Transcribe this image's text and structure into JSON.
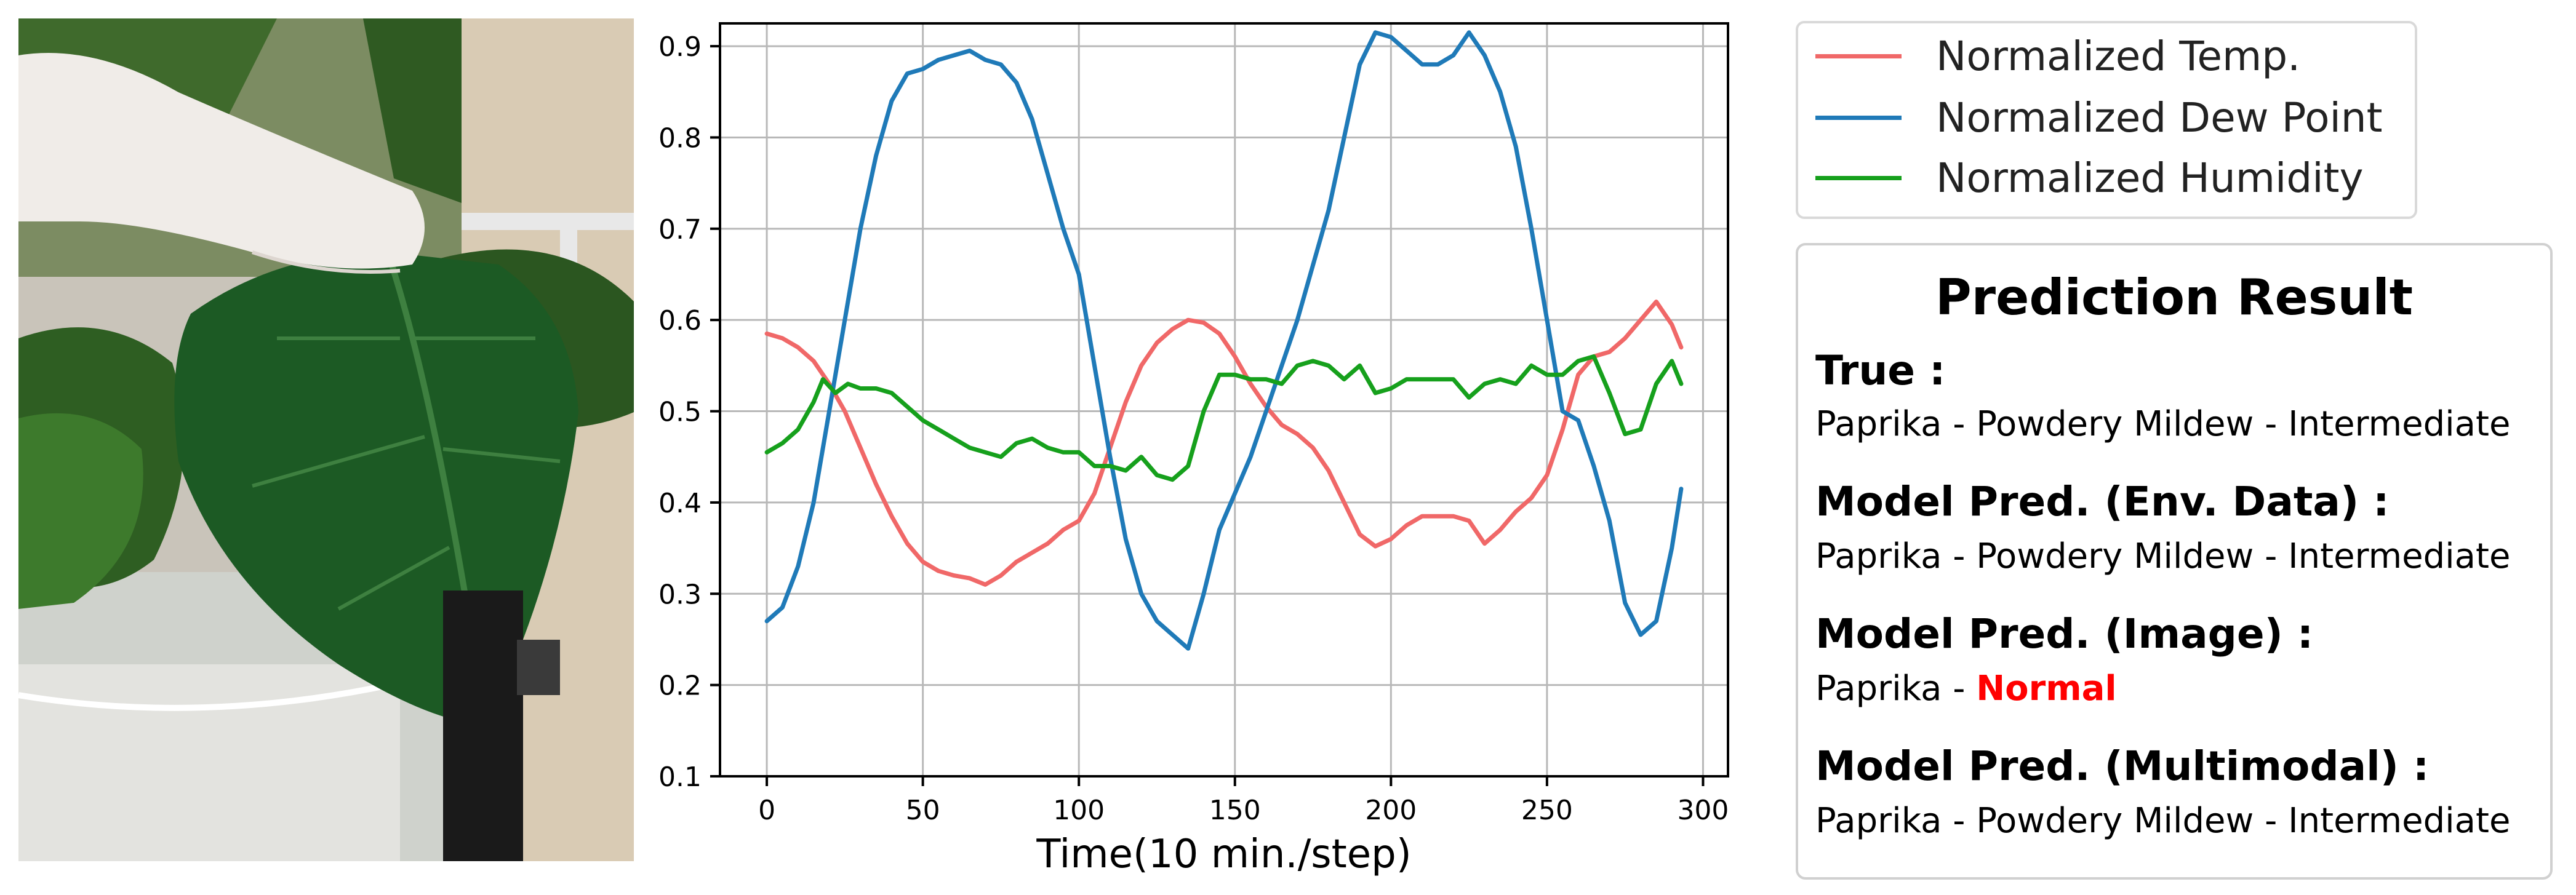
{
  "chart_data": {
    "type": "line",
    "xlabel": "Time(10 min./step)",
    "ylabel": "",
    "xlim": [
      -15,
      308
    ],
    "ylim": [
      0.1,
      0.925
    ],
    "x_ticks": [
      0,
      50,
      100,
      150,
      200,
      250,
      300
    ],
    "y_ticks": [
      0.1,
      0.2,
      0.3,
      0.4,
      0.5,
      0.6,
      0.7,
      0.8,
      0.9
    ],
    "grid": true,
    "legend_position": "top-right (outside plot)",
    "series": [
      {
        "name": "Normalized Temp.",
        "color": "#f06868",
        "points": [
          [
            0,
            0.585
          ],
          [
            5,
            0.58
          ],
          [
            10,
            0.57
          ],
          [
            15,
            0.555
          ],
          [
            20,
            0.53
          ],
          [
            25,
            0.5
          ],
          [
            30,
            0.46
          ],
          [
            35,
            0.42
          ],
          [
            40,
            0.385
          ],
          [
            45,
            0.355
          ],
          [
            50,
            0.335
          ],
          [
            55,
            0.325
          ],
          [
            60,
            0.32
          ],
          [
            65,
            0.317
          ],
          [
            70,
            0.31
          ],
          [
            75,
            0.32
          ],
          [
            80,
            0.335
          ],
          [
            85,
            0.345
          ],
          [
            90,
            0.355
          ],
          [
            95,
            0.37
          ],
          [
            100,
            0.38
          ],
          [
            105,
            0.41
          ],
          [
            110,
            0.46
          ],
          [
            115,
            0.51
          ],
          [
            120,
            0.55
          ],
          [
            125,
            0.575
          ],
          [
            130,
            0.59
          ],
          [
            135,
            0.6
          ],
          [
            140,
            0.597
          ],
          [
            145,
            0.585
          ],
          [
            150,
            0.56
          ],
          [
            155,
            0.53
          ],
          [
            160,
            0.505
          ],
          [
            165,
            0.485
          ],
          [
            170,
            0.475
          ],
          [
            175,
            0.46
          ],
          [
            180,
            0.435
          ],
          [
            185,
            0.4
          ],
          [
            190,
            0.365
          ],
          [
            195,
            0.352
          ],
          [
            200,
            0.36
          ],
          [
            205,
            0.375
          ],
          [
            210,
            0.385
          ],
          [
            215,
            0.385
          ],
          [
            220,
            0.385
          ],
          [
            225,
            0.38
          ],
          [
            230,
            0.355
          ],
          [
            235,
            0.37
          ],
          [
            240,
            0.39
          ],
          [
            245,
            0.405
          ],
          [
            250,
            0.43
          ],
          [
            255,
            0.48
          ],
          [
            260,
            0.54
          ],
          [
            265,
            0.56
          ],
          [
            270,
            0.565
          ],
          [
            275,
            0.58
          ],
          [
            280,
            0.6
          ],
          [
            285,
            0.62
          ],
          [
            290,
            0.595
          ],
          [
            293,
            0.57
          ]
        ]
      },
      {
        "name": "Normalized Dew Point",
        "color": "#1f7ab8",
        "points": [
          [
            0,
            0.27
          ],
          [
            5,
            0.285
          ],
          [
            10,
            0.33
          ],
          [
            15,
            0.4
          ],
          [
            20,
            0.5
          ],
          [
            25,
            0.6
          ],
          [
            30,
            0.7
          ],
          [
            35,
            0.78
          ],
          [
            40,
            0.84
          ],
          [
            45,
            0.87
          ],
          [
            50,
            0.875
          ],
          [
            55,
            0.885
          ],
          [
            60,
            0.89
          ],
          [
            65,
            0.895
          ],
          [
            70,
            0.885
          ],
          [
            75,
            0.88
          ],
          [
            80,
            0.86
          ],
          [
            85,
            0.82
          ],
          [
            90,
            0.76
          ],
          [
            95,
            0.7
          ],
          [
            100,
            0.65
          ],
          [
            105,
            0.55
          ],
          [
            110,
            0.45
          ],
          [
            115,
            0.36
          ],
          [
            120,
            0.3
          ],
          [
            125,
            0.27
          ],
          [
            130,
            0.255
          ],
          [
            135,
            0.24
          ],
          [
            140,
            0.3
          ],
          [
            145,
            0.37
          ],
          [
            150,
            0.41
          ],
          [
            155,
            0.45
          ],
          [
            160,
            0.5
          ],
          [
            165,
            0.55
          ],
          [
            170,
            0.6
          ],
          [
            175,
            0.66
          ],
          [
            180,
            0.72
          ],
          [
            185,
            0.8
          ],
          [
            190,
            0.88
          ],
          [
            195,
            0.915
          ],
          [
            200,
            0.91
          ],
          [
            205,
            0.895
          ],
          [
            210,
            0.88
          ],
          [
            215,
            0.88
          ],
          [
            220,
            0.89
          ],
          [
            225,
            0.915
          ],
          [
            230,
            0.89
          ],
          [
            235,
            0.85
          ],
          [
            240,
            0.79
          ],
          [
            245,
            0.7
          ],
          [
            250,
            0.6
          ],
          [
            255,
            0.5
          ],
          [
            260,
            0.49
          ],
          [
            265,
            0.44
          ],
          [
            270,
            0.38
          ],
          [
            275,
            0.29
          ],
          [
            280,
            0.255
          ],
          [
            285,
            0.27
          ],
          [
            290,
            0.35
          ],
          [
            293,
            0.415
          ]
        ]
      },
      {
        "name": "Normalized Humidity",
        "color": "#16a01c",
        "points": [
          [
            0,
            0.455
          ],
          [
            5,
            0.465
          ],
          [
            10,
            0.48
          ],
          [
            15,
            0.51
          ],
          [
            18,
            0.535
          ],
          [
            22,
            0.52
          ],
          [
            26,
            0.53
          ],
          [
            30,
            0.525
          ],
          [
            35,
            0.525
          ],
          [
            40,
            0.52
          ],
          [
            45,
            0.505
          ],
          [
            50,
            0.49
          ],
          [
            55,
            0.48
          ],
          [
            60,
            0.47
          ],
          [
            65,
            0.46
          ],
          [
            70,
            0.455
          ],
          [
            75,
            0.45
          ],
          [
            80,
            0.465
          ],
          [
            85,
            0.47
          ],
          [
            90,
            0.46
          ],
          [
            95,
            0.455
          ],
          [
            100,
            0.455
          ],
          [
            105,
            0.44
          ],
          [
            110,
            0.44
          ],
          [
            115,
            0.435
          ],
          [
            120,
            0.45
          ],
          [
            125,
            0.43
          ],
          [
            130,
            0.425
          ],
          [
            135,
            0.44
          ],
          [
            140,
            0.5
          ],
          [
            145,
            0.54
          ],
          [
            150,
            0.54
          ],
          [
            155,
            0.535
          ],
          [
            160,
            0.535
          ],
          [
            165,
            0.53
          ],
          [
            170,
            0.55
          ],
          [
            175,
            0.555
          ],
          [
            180,
            0.55
          ],
          [
            185,
            0.535
          ],
          [
            190,
            0.55
          ],
          [
            195,
            0.52
          ],
          [
            200,
            0.525
          ],
          [
            205,
            0.535
          ],
          [
            210,
            0.535
          ],
          [
            215,
            0.535
          ],
          [
            220,
            0.535
          ],
          [
            225,
            0.515
          ],
          [
            230,
            0.53
          ],
          [
            235,
            0.535
          ],
          [
            240,
            0.53
          ],
          [
            245,
            0.55
          ],
          [
            250,
            0.54
          ],
          [
            255,
            0.54
          ],
          [
            260,
            0.555
          ],
          [
            265,
            0.56
          ],
          [
            270,
            0.52
          ],
          [
            275,
            0.475
          ],
          [
            280,
            0.48
          ],
          [
            285,
            0.53
          ],
          [
            290,
            0.555
          ],
          [
            293,
            0.53
          ]
        ]
      }
    ]
  },
  "prediction": {
    "title": "Prediction Result",
    "items": [
      {
        "head": "True :",
        "value": "Paprika - Powdery Mildew - Intermediate"
      },
      {
        "head": "Model Pred. (Env. Data) :",
        "value": "Paprika - Powdery Mildew - Intermediate"
      },
      {
        "head": "Model Pred. (Image) :",
        "value_prefix": "Paprika - ",
        "value_highlight": "Normal",
        "highlight_color": "#ff0000"
      },
      {
        "head": "Model Pred. (Multimodal) :",
        "value": "Paprika - Powdery Mildew - Intermediate"
      }
    ]
  }
}
